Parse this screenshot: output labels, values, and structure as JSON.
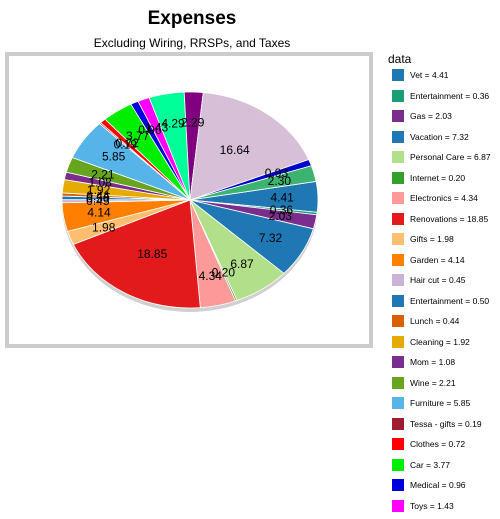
{
  "chart_data": {
    "type": "pie",
    "title": "Expenses",
    "subtitle": "Excluding Wiring, RRSPs, and Taxes",
    "legend_title": "data",
    "legend_position": "right",
    "slices": [
      {
        "label": "Vet = 4.41",
        "name": "Vet",
        "value": 4.41,
        "color": "#1f78b4"
      },
      {
        "label": "Entertainment = 0.36",
        "name": "Entertainment",
        "value": 0.36,
        "color": "#1b9e77"
      },
      {
        "label": "Gas = 2.03",
        "name": "Gas",
        "value": 2.03,
        "color": "#7b2d8e"
      },
      {
        "label": "Vacation = 7.32",
        "name": "Vacation",
        "value": 7.32,
        "color": "#1f78b4"
      },
      {
        "label": "Personal Care = 6.87",
        "name": "Personal Care",
        "value": 6.87,
        "color": "#b2df8a"
      },
      {
        "label": "Internet = 0.20",
        "name": "Internet",
        "value": 0.2,
        "color": "#33a02c"
      },
      {
        "label": "Electronics = 4.34",
        "name": "Electronics",
        "value": 4.34,
        "color": "#fb9a99"
      },
      {
        "label": "Renovations = 18.85",
        "name": "Renovations",
        "value": 18.85,
        "color": "#e31a1c"
      },
      {
        "label": "Gifts = 1.98",
        "name": "Gifts",
        "value": 1.98,
        "color": "#fdbf6f"
      },
      {
        "label": "Garden = 4.14",
        "name": "Garden",
        "value": 4.14,
        "color": "#ff7f00"
      },
      {
        "label": "Hair cut = 0.45",
        "name": "Hair cut",
        "value": 0.45,
        "color": "#cab2d6"
      },
      {
        "label": "Entertainment = 0.50",
        "name": "Entertainment",
        "value": 0.5,
        "color": "#1f78b4"
      },
      {
        "label": "Lunch = 0.44",
        "name": "Lunch",
        "value": 0.44,
        "color": "#d95f02"
      },
      {
        "label": "Cleaning = 1.92",
        "name": "Cleaning",
        "value": 1.92,
        "color": "#e6ab02"
      },
      {
        "label": "Mom = 1.08",
        "name": "Mom",
        "value": 1.08,
        "color": "#7b2d8e"
      },
      {
        "label": "Wine = 2.21",
        "name": "Wine",
        "value": 2.21,
        "color": "#66a61e"
      },
      {
        "label": "Furniture = 5.85",
        "name": "Furniture",
        "value": 5.85,
        "color": "#56b4e9"
      },
      {
        "label": "Tessa - gifts = 0.19",
        "name": "Tessa - gifts",
        "value": 0.19,
        "color": "#9e1c2e"
      },
      {
        "label": "Clothes = 0.72",
        "name": "Clothes",
        "value": 0.72,
        "color": "#ff0000"
      },
      {
        "label": "Car = 3.77",
        "name": "Car",
        "value": 3.77,
        "color": "#00ee00"
      },
      {
        "label": "Medical = 0.96",
        "name": "Medical",
        "value": 0.96,
        "color": "#0000dd"
      },
      {
        "label": "Toys = 1.43",
        "name": "Toys",
        "value": 1.43,
        "color": "#ff00ff"
      },
      {
        "label": "",
        "name": "",
        "value": 4.29,
        "color": "#00ff99"
      },
      {
        "label": "",
        "name": "",
        "value": 2.29,
        "color": "#800080"
      },
      {
        "label": "",
        "name": "",
        "value": 16.64,
        "color": "#d8bfd8"
      },
      {
        "label": "",
        "name": "",
        "value": 0.93,
        "color": "#0000cc"
      },
      {
        "label": "",
        "name": "",
        "value": 2.3,
        "color": "#3cb371"
      }
    ]
  }
}
